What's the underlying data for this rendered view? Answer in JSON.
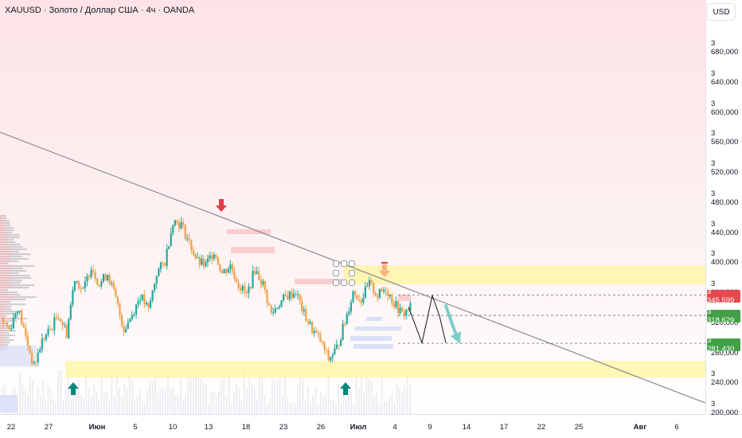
{
  "header": {
    "symbol_title": "XAUUSD · Золото / Доллар США · 4ч · OANDA",
    "currency": "USD"
  },
  "price_tags": [
    {
      "label": "3 345,599",
      "color": "#e5484d"
    },
    {
      "label": "3 318,629",
      "color": "#43a047"
    },
    {
      "label": "3 281,430",
      "color": "#43a047"
    }
  ],
  "colors": {
    "up_candle": "#26a69a",
    "down_candle": "#f5a04a",
    "trendline": "#787b86",
    "zone_yellow": "#fff59d",
    "zone_red": "#f8c6c8",
    "zone_blue": "#d6ddf7",
    "arrow_up": "#00897b",
    "arrow_down": "#e53946",
    "arrow_down_light": "#f9b27c",
    "projection_arrow": "#7ccfc9"
  },
  "chart_data": {
    "type": "candlestick",
    "title": "XAUUSD · Золото / Доллар США · 4ч · OANDA",
    "y_axis": {
      "ticks": [
        "3 200,000",
        "3 240,000",
        "3 280,000",
        "3 320,000",
        "3 360,000",
        "3 400,000",
        "3 440,000",
        "3 480,000",
        "3 520,000",
        "3 560,000",
        "3 600,000",
        "3 640,000",
        "3 680,000"
      ],
      "tick_values": [
        3200,
        3240,
        3280,
        3320,
        3360,
        3400,
        3440,
        3480,
        3520,
        3560,
        3600,
        3640,
        3680
      ],
      "range": [
        3195,
        3710
      ]
    },
    "x_axis": {
      "ticks": [
        "22",
        "27",
        "Июн",
        "5",
        "10",
        "13",
        "18",
        "23",
        "26",
        "Июл",
        "4",
        "9",
        "14",
        "17",
        "22",
        "25",
        "Авг",
        "6"
      ],
      "bold": [
        "Июн",
        "Июл",
        "Авг"
      ]
    },
    "price_path": [
      3315,
      3300,
      3330,
      3290,
      3250,
      3285,
      3300,
      3320,
      3295,
      3370,
      3350,
      3385,
      3360,
      3375,
      3340,
      3300,
      3320,
      3345,
      3325,
      3375,
      3390,
      3445,
      3440,
      3415,
      3390,
      3385,
      3405,
      3375,
      3385,
      3360,
      3345,
      3380,
      3360,
      3320,
      3335,
      3345,
      3350,
      3320,
      3300,
      3285,
      3260,
      3275,
      3310,
      3350,
      3340,
      3360,
      3345,
      3355,
      3335,
      3320,
      3330
    ],
    "levels": [
      3345.599,
      3318.629,
      3281.43
    ],
    "zones": [
      {
        "label": "resistance",
        "low": 3360,
        "high": 3385
      },
      {
        "label": "support",
        "low": 3236,
        "high": 3258
      }
    ],
    "projection": [
      3330,
      3282,
      3345,
      3318,
      3282
    ],
    "grid": false,
    "legend": "none"
  }
}
